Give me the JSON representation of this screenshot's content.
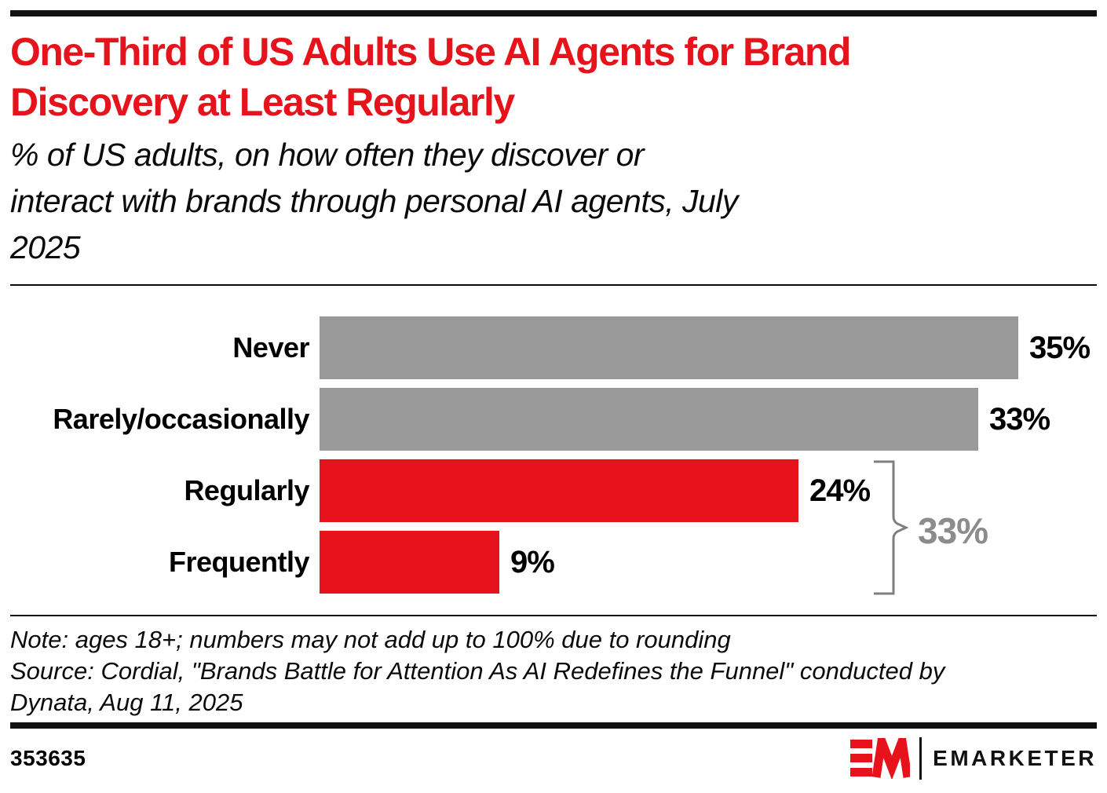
{
  "page": {
    "title_lines": [
      "One-Third of US Adults Use AI Agents for Brand",
      "Discovery at Least Regularly"
    ],
    "subtitle_lines": [
      "% of US adults, on how often they discover or",
      "interact with brands through personal AI agents, July",
      "2025"
    ],
    "note_lines": [
      "Note: ages 18+; numbers may not add up to 100% due to rounding",
      "Source: Cordial, \"Brands Battle for Attention As AI Redefines the Funnel\" conducted by",
      "Dynata, Aug 11, 2025"
    ],
    "chart_id": "353635",
    "brand": {
      "wordmark": "EMARKETER",
      "logo_icon": "emarketer-em-icon",
      "red": "#E7131C"
    }
  },
  "chart_data": {
    "type": "bar",
    "orientation": "horizontal",
    "title": "One-Third of US Adults Use AI Agents for Brand Discovery at Least Regularly",
    "subtitle": "% of US adults, on how often they discover or interact with brands through personal AI agents, July 2025",
    "categories": [
      "Never",
      "Rarely/occasionally",
      "Regularly",
      "Frequently"
    ],
    "values": [
      35,
      33,
      24,
      9
    ],
    "value_labels": [
      "35%",
      "33%",
      "24%",
      "9%"
    ],
    "bar_colors": [
      "#999999",
      "#999999",
      "#E7131C",
      "#E7131C"
    ],
    "xlim": [
      0,
      35
    ],
    "grid": false,
    "legend": false,
    "annotation": {
      "label": "33%",
      "applies_to": [
        "Regularly",
        "Frequently"
      ],
      "style": "curly-brace",
      "color": "#8C8C8C"
    },
    "colors": {
      "red": "#E7131C",
      "gray": "#999999",
      "bracket": "#7F7F7F",
      "text": "#000000"
    }
  }
}
